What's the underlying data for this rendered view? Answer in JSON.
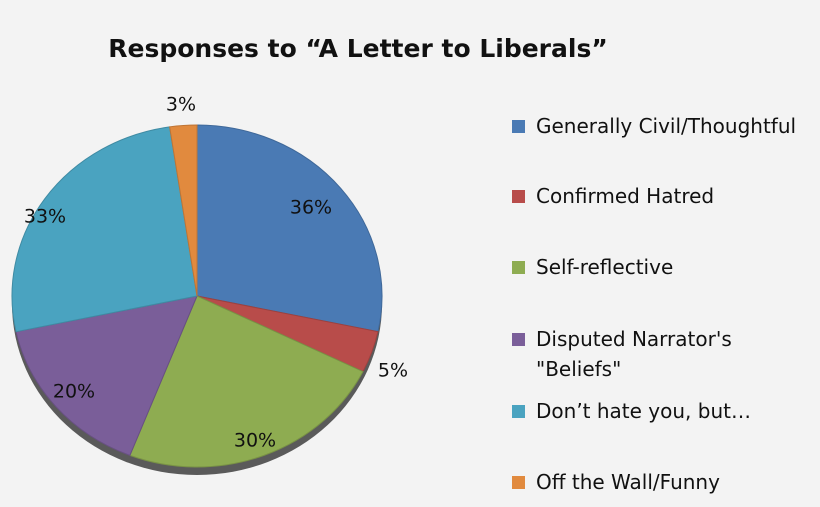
{
  "chart_data": {
    "type": "pie",
    "title": "Responses to “A Letter to Liberals”",
    "categories": [
      "Generally Civil/Thoughtful",
      "Confirmed Hatred",
      "Self-reflective",
      "Disputed Narrator's \"Beliefs\"",
      "Don’t hate you, but…",
      "Off the Wall/Funny"
    ],
    "values": [
      36,
      5,
      30,
      20,
      33,
      3
    ],
    "data_labels": [
      "36%",
      "5%",
      "30%",
      "20%",
      "33%",
      "3%"
    ],
    "colors": [
      "#4a7ab4",
      "#b84c4a",
      "#8eac51",
      "#7a5e99",
      "#4aa3c0",
      "#e18a3e"
    ],
    "legend_position": "right",
    "grid": false
  },
  "legend": {
    "items": [
      "Generally Civil/Thoughtful",
      "Confirmed Hatred",
      "Self-reflective",
      "Disputed Narrator's\n\"Beliefs\"",
      "Don’t hate you, but…",
      "Off the Wall/Funny"
    ]
  }
}
